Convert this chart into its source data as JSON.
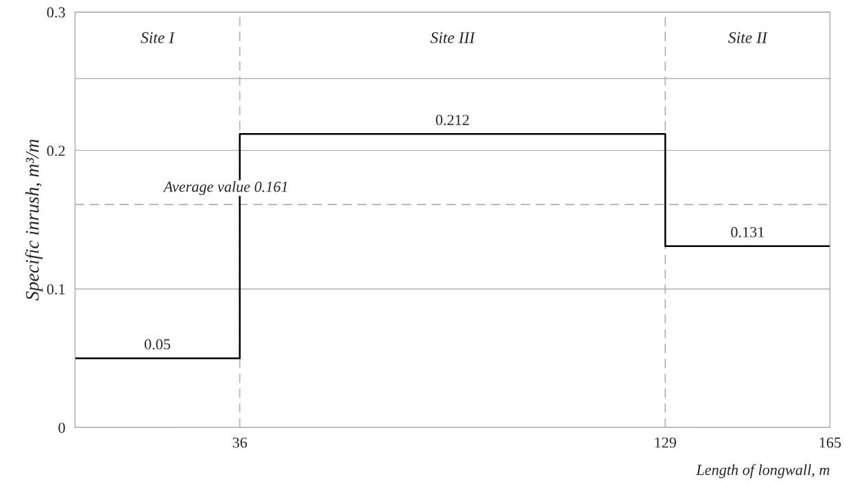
{
  "chart_data": {
    "type": "step",
    "xlabel": "Length of longwall, m",
    "ylabel": "Specific inrush, m³/m",
    "x": [
      0,
      36,
      129,
      165
    ],
    "series": [
      {
        "color": "#000000",
        "values": [
          0.05,
          0.212,
          0.131,
          0.131
        ]
      }
    ],
    "xlim": [
      0,
      165
    ],
    "ylim": [
      0,
      0.3
    ],
    "xticks": [
      36,
      129,
      165
    ],
    "yticks": [
      0,
      0.1,
      0.2,
      0.3
    ],
    "grid": "y",
    "line_style": "solid",
    "ref_lines": [
      {
        "axis": "y",
        "value": 0.161,
        "label": "Average value 0.161",
        "line_style": "dashed",
        "color": "#b0b0b0"
      },
      {
        "axis": "x",
        "value": 36,
        "line_style": "dashed",
        "color": "#b0b0b0"
      },
      {
        "axis": "x",
        "value": 129,
        "line_style": "dashed",
        "color": "#b0b0b0"
      },
      {
        "axis": "y",
        "value": 0.252,
        "line_style": "solid",
        "color": "#b0b0b0"
      }
    ],
    "annotations": [
      {
        "text": "0.05",
        "x": 18,
        "y": 0.05
      },
      {
        "text": "0.212",
        "x": 82.5,
        "y": 0.212
      },
      {
        "text": "0.131",
        "x": 147,
        "y": 0.131
      },
      "Site I",
      "Site III",
      "Site II"
    ]
  }
}
